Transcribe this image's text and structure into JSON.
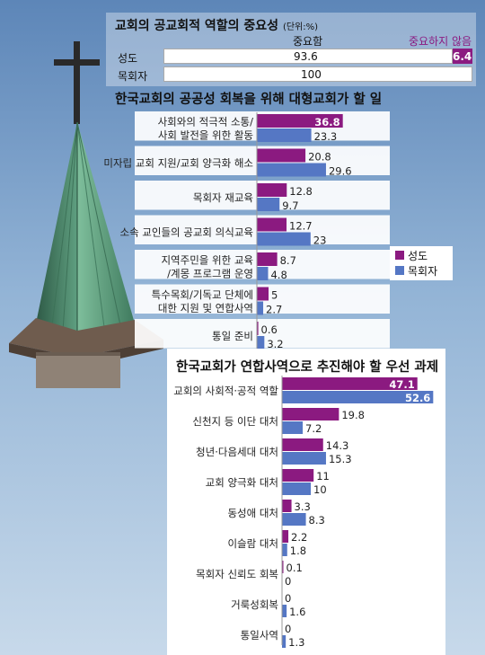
{
  "colors": {
    "member": "#8b1a80",
    "pastor": "#5577c4"
  },
  "legend": {
    "member": "성도",
    "pastor": "목회자"
  },
  "chart_data": [
    {
      "type": "bar",
      "title": "교회의 공교회적 역할의 중요성",
      "unit": "(단위:%)",
      "columns": [
        "중요함",
        "중요하지 않음"
      ],
      "categories": [
        "성도",
        "목회자"
      ],
      "series": [
        {
          "name": "중요함",
          "values": [
            93.6,
            100
          ],
          "labels": [
            "93.6",
            "100"
          ]
        },
        {
          "name": "중요하지 않음",
          "values": [
            6.4,
            0
          ],
          "labels": [
            "6.4",
            ""
          ]
        }
      ]
    },
    {
      "type": "bar",
      "title": "한국교회의 공공성 회복을 위해 대형교회가 할 일",
      "categories": [
        [
          "사회와의 적극적 소통/",
          "사회 발전을 위한 활동"
        ],
        [
          "미자립 교회 지원/교회 양극화 해소"
        ],
        [
          "목회자 재교육"
        ],
        [
          "소속 교인들의 공교회 의식교육"
        ],
        [
          "지역주민을 위한 교육",
          "/계몽 프로그램 운영"
        ],
        [
          "특수목회/기독교 단체에",
          "대한 지원 및 연합사역"
        ],
        [
          "통일 준비"
        ]
      ],
      "series": [
        {
          "name": "성도",
          "values": [
            36.8,
            20.8,
            12.8,
            12.7,
            8.7,
            5,
            0.6
          ],
          "labels": [
            "36.8",
            "20.8",
            "12.8",
            "12.7",
            "8.7",
            "5",
            "0.6"
          ]
        },
        {
          "name": "목회자",
          "values": [
            23.3,
            29.6,
            9.7,
            23,
            4.8,
            2.7,
            3.2
          ],
          "labels": [
            "23.3",
            "29.6",
            "9.7",
            "23",
            "4.8",
            "2.7",
            "3.2"
          ]
        }
      ]
    },
    {
      "type": "bar",
      "title": "한국교회가 연합사역으로 추진해야 할 우선 과제",
      "categories": [
        [
          "교회의 사회적·공적 역할"
        ],
        [
          "신천지 등 이단 대처"
        ],
        [
          "청년·다음세대 대처"
        ],
        [
          "교회 양극화 대처"
        ],
        [
          "동성애 대처"
        ],
        [
          "이슬람 대처"
        ],
        [
          "목회자 신뢰도 회복"
        ],
        [
          "거룩성회복"
        ],
        [
          "통일사역"
        ]
      ],
      "series": [
        {
          "name": "성도",
          "values": [
            47.1,
            19.8,
            14.3,
            11,
            3.3,
            2.2,
            0.1,
            0,
            0
          ],
          "labels": [
            "47.1",
            "19.8",
            "14.3",
            "11",
            "3.3",
            "2.2",
            "0.1",
            "0",
            "0"
          ]
        },
        {
          "name": "목회자",
          "values": [
            52.6,
            7.2,
            15.3,
            10,
            8.3,
            1.8,
            0,
            1.6,
            1.3
          ],
          "labels": [
            "52.6",
            "7.2",
            "15.3",
            "10",
            "8.3",
            "1.8",
            "0",
            "1.6",
            "1.3"
          ]
        }
      ]
    }
  ]
}
